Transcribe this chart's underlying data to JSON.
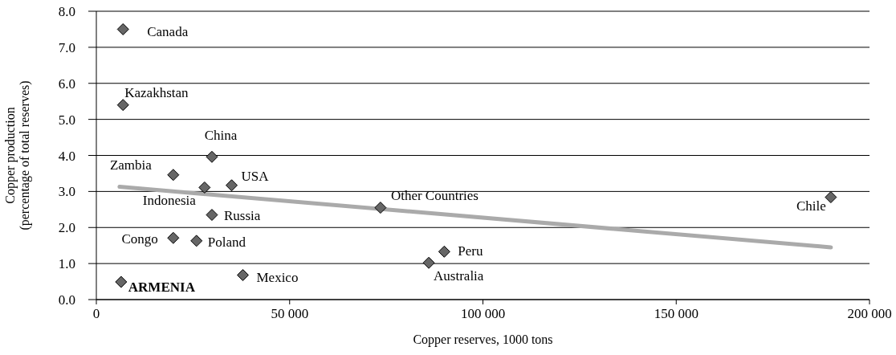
{
  "chart_data": {
    "type": "scatter",
    "xlabel": "Copper reserves, 1000 tons",
    "ylabel": "Copper production\n(percentage of total reserves)",
    "xlim": [
      0,
      200000
    ],
    "ylim": [
      0,
      8
    ],
    "xticks": [
      0,
      {
        "value": 50000,
        "label": "50 000"
      },
      {
        "value": 100000,
        "label": "100 000"
      },
      {
        "value": 150000,
        "label": "150 000"
      },
      {
        "value": 200000,
        "label": "200 000"
      }
    ],
    "yticks": [
      {
        "value": 0,
        "label": "0.0"
      },
      {
        "value": 1,
        "label": "1.0"
      },
      {
        "value": 2,
        "label": "2.0"
      },
      {
        "value": 3,
        "label": "3.0"
      },
      {
        "value": 4,
        "label": "4.0"
      },
      {
        "value": 5,
        "label": "5.0"
      },
      {
        "value": 6,
        "label": "6.0"
      },
      {
        "value": 7,
        "label": "7.0"
      },
      {
        "value": 8,
        "label": "8.0"
      }
    ],
    "grid": "y",
    "series": [
      {
        "color": "#666666",
        "marker": "diamond",
        "x": [
          6900,
          6900,
          29900,
          19900,
          28000,
          35000,
          29900,
          73500,
          190000,
          19900,
          25900,
          90000,
          86000,
          37900,
          6400
        ],
        "values": [
          7.5,
          5.4,
          3.96,
          3.46,
          3.11,
          3.17,
          2.35,
          2.55,
          2.84,
          1.71,
          1.63,
          1.33,
          1.02,
          0.68,
          0.49
        ]
      },
      {
        "type": "line",
        "color": "#aaaaaa",
        "line_style": "solid",
        "x": [
          6000,
          190000
        ],
        "values": [
          3.13,
          1.45
        ]
      }
    ],
    "annotations": [
      {
        "text": "Canada",
        "x": 6900,
        "y": 7.5
      },
      {
        "text": "Kazakhstan",
        "x": 6900,
        "y": 5.4
      },
      {
        "text": "China",
        "x": 29900,
        "y": 3.96
      },
      {
        "text": "Zambia",
        "x": 19900,
        "y": 3.46
      },
      {
        "text": "Indonesia",
        "x": 28000,
        "y": 3.11
      },
      {
        "text": "USA",
        "x": 35000,
        "y": 3.17
      },
      {
        "text": "Russia",
        "x": 29900,
        "y": 2.35
      },
      {
        "text": "Other Countries",
        "x": 73500,
        "y": 2.55
      },
      {
        "text": "Chile",
        "x": 190000,
        "y": 2.84
      },
      {
        "text": "Congo",
        "x": 19900,
        "y": 1.71
      },
      {
        "text": "Poland",
        "x": 25900,
        "y": 1.63
      },
      {
        "text": "Peru",
        "x": 90000,
        "y": 1.33
      },
      {
        "text": "Australia",
        "x": 86000,
        "y": 1.02
      },
      {
        "text": "Mexico",
        "x": 37900,
        "y": 0.68
      },
      {
        "text": "ARMENIA",
        "x": 6400,
        "y": 0.49
      }
    ]
  }
}
